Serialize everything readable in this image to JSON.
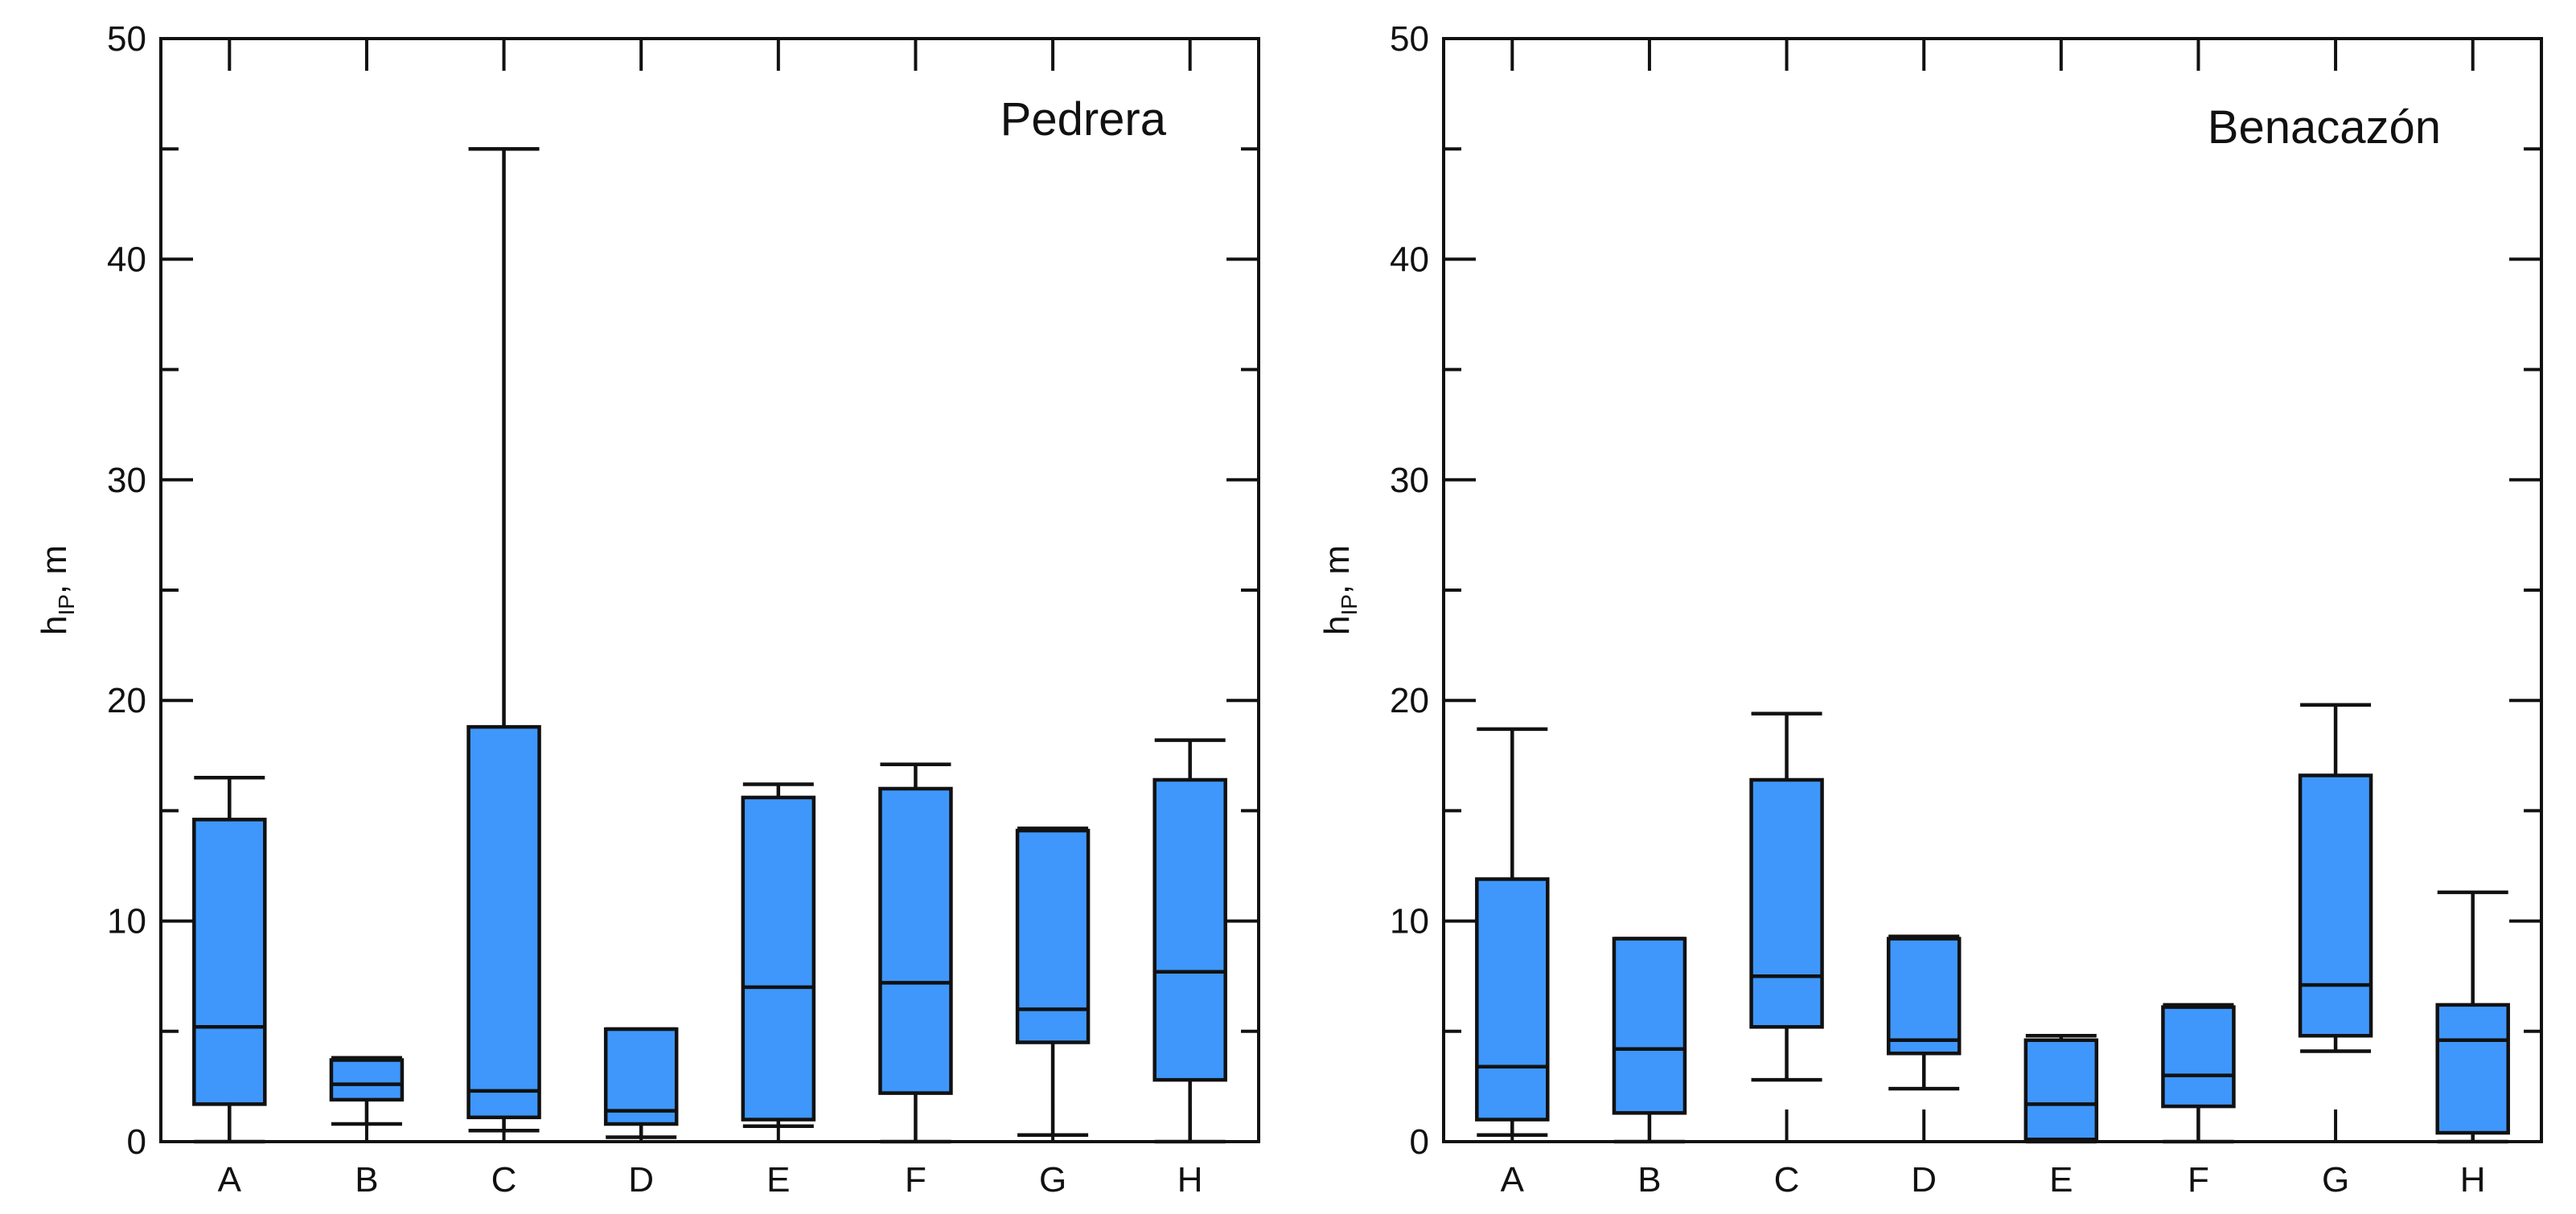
{
  "chart_data": [
    {
      "type": "boxplot",
      "title": "Pedrera",
      "ylabel": {
        "main": "h",
        "sub": "IP",
        "unit": ", m"
      },
      "xlabel": "",
      "ylim": [
        0,
        50
      ],
      "yticks": [
        0,
        10,
        20,
        30,
        40,
        50
      ],
      "categories": [
        "A",
        "B",
        "C",
        "D",
        "E",
        "F",
        "G",
        "H"
      ],
      "boxes": [
        {
          "category": "A",
          "whisker_low": 0.0,
          "q1": 1.7,
          "median": 5.2,
          "q3": 14.6,
          "whisker_high": 16.5
        },
        {
          "category": "B",
          "whisker_low": 0.8,
          "q1": 1.9,
          "median": 2.6,
          "q3": 3.7,
          "whisker_high": 3.8
        },
        {
          "category": "C",
          "whisker_low": 0.5,
          "q1": 1.1,
          "median": 2.3,
          "q3": 18.8,
          "whisker_high": 45.0
        },
        {
          "category": "D",
          "whisker_low": 0.2,
          "q1": 0.8,
          "median": 1.4,
          "q3": 5.1,
          "whisker_high": 5.1
        },
        {
          "category": "E",
          "whisker_low": 0.7,
          "q1": 1.0,
          "median": 7.0,
          "q3": 15.6,
          "whisker_high": 16.2
        },
        {
          "category": "F",
          "whisker_low": 0.0,
          "q1": 2.2,
          "median": 7.2,
          "q3": 16.0,
          "whisker_high": 17.1
        },
        {
          "category": "G",
          "whisker_low": 0.3,
          "q1": 4.5,
          "median": 6.0,
          "q3": 14.1,
          "whisker_high": 14.2
        },
        {
          "category": "H",
          "whisker_low": 0.0,
          "q1": 2.8,
          "median": 7.7,
          "q3": 16.4,
          "whisker_high": 18.2
        }
      ]
    },
    {
      "type": "boxplot",
      "title": "Benacazón",
      "ylabel": {
        "main": "h",
        "sub": "IP",
        "unit": ", m"
      },
      "xlabel": "",
      "ylim": [
        0,
        50
      ],
      "yticks": [
        0,
        10,
        20,
        30,
        40,
        50
      ],
      "categories": [
        "A",
        "B",
        "C",
        "D",
        "E",
        "F",
        "G",
        "H"
      ],
      "boxes": [
        {
          "category": "A",
          "whisker_low": 0.3,
          "q1": 1.0,
          "median": 3.4,
          "q3": 11.9,
          "whisker_high": 18.7
        },
        {
          "category": "B",
          "whisker_low": 0.0,
          "q1": 1.3,
          "median": 4.2,
          "q3": 9.2,
          "whisker_high": 9.2
        },
        {
          "category": "C",
          "whisker_low": 2.8,
          "q1": 5.2,
          "median": 7.5,
          "q3": 16.4,
          "whisker_high": 19.4
        },
        {
          "category": "D",
          "whisker_low": 2.4,
          "q1": 4.0,
          "median": 4.6,
          "q3": 9.2,
          "whisker_high": 9.3
        },
        {
          "category": "E",
          "whisker_low": 0.0,
          "q1": 0.1,
          "median": 1.7,
          "q3": 4.6,
          "whisker_high": 4.8
        },
        {
          "category": "F",
          "whisker_low": 0.0,
          "q1": 1.6,
          "median": 3.0,
          "q3": 6.1,
          "whisker_high": 6.2
        },
        {
          "category": "G",
          "whisker_low": 4.1,
          "q1": 4.8,
          "median": 7.1,
          "q3": 16.6,
          "whisker_high": 19.8
        },
        {
          "category": "H",
          "whisker_low": 0.0,
          "q1": 0.4,
          "median": 4.6,
          "q3": 6.2,
          "whisker_high": 11.3
        }
      ]
    }
  ],
  "colors": {
    "box_fill": "#3f97fb",
    "stroke": "#111111",
    "background": "#ffffff"
  }
}
